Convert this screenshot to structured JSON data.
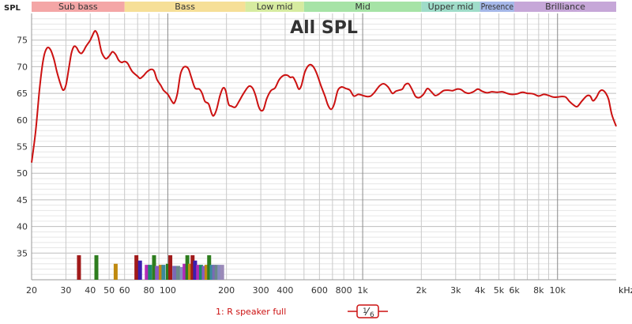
{
  "chart_data": {
    "type": "line",
    "title": "All SPL",
    "ylabel": "SPL",
    "x_unit": "kHz",
    "x_scale": "log",
    "xlim": [
      20,
      20000
    ],
    "ylim": [
      30,
      80
    ],
    "grid": true,
    "bands": [
      {
        "label": "Sub bass",
        "from": 20,
        "to": 60,
        "color": "#f4a6a6"
      },
      {
        "label": "Bass",
        "from": 60,
        "to": 250,
        "color": "#f6df97"
      },
      {
        "label": "Low mid",
        "from": 250,
        "to": 500,
        "color": "#d6eba0"
      },
      {
        "label": "Mid",
        "from": 500,
        "to": 2000,
        "color": "#a6e3a6"
      },
      {
        "label": "Upper mid",
        "from": 2000,
        "to": 4000,
        "color": "#9fdcc9"
      },
      {
        "label": "Presence",
        "from": 4000,
        "to": 6000,
        "color": "#a5b7e8"
      },
      {
        "label": "Brilliance",
        "from": 6000,
        "to": 20000,
        "color": "#c6a7d8"
      }
    ],
    "y_ticks": [
      35,
      40,
      45,
      50,
      55,
      60,
      65,
      70,
      75
    ],
    "x_ticks": [
      {
        "v": 20,
        "label": "20"
      },
      {
        "v": 30,
        "label": "30"
      },
      {
        "v": 40,
        "label": "40"
      },
      {
        "v": 50,
        "label": "50"
      },
      {
        "v": 60,
        "label": "60"
      },
      {
        "v": 80,
        "label": "80"
      },
      {
        "v": 100,
        "label": "100"
      },
      {
        "v": 200,
        "label": "200"
      },
      {
        "v": 300,
        "label": "300"
      },
      {
        "v": 400,
        "label": "400"
      },
      {
        "v": 600,
        "label": "600"
      },
      {
        "v": 800,
        "label": "800"
      },
      {
        "v": 1000,
        "label": "1k"
      },
      {
        "v": 2000,
        "label": "2k"
      },
      {
        "v": 3000,
        "label": "3k"
      },
      {
        "v": 4000,
        "label": "4k"
      },
      {
        "v": 5000,
        "label": "5k"
      },
      {
        "v": 6000,
        "label": "6k"
      },
      {
        "v": 8000,
        "label": "8k"
      },
      {
        "v": 10000,
        "label": "10k"
      }
    ],
    "series": [
      {
        "name": "1: R speaker full",
        "color": "#cc1111",
        "points": [
          [
            20,
            52
          ],
          [
            21,
            58
          ],
          [
            22,
            66
          ],
          [
            23,
            71.5
          ],
          [
            24,
            73.5
          ],
          [
            25,
            73.2
          ],
          [
            26,
            71.5
          ],
          [
            27,
            69
          ],
          [
            28,
            67
          ],
          [
            29,
            65.6
          ],
          [
            30,
            66.5
          ],
          [
            31,
            69.5
          ],
          [
            32,
            72.5
          ],
          [
            33,
            73.8
          ],
          [
            34,
            73.6
          ],
          [
            35,
            72.8
          ],
          [
            36,
            72.5
          ],
          [
            37,
            73
          ],
          [
            38,
            73.8
          ],
          [
            40,
            75
          ],
          [
            42,
            76.6
          ],
          [
            43,
            76.5
          ],
          [
            44,
            75.5
          ],
          [
            45,
            73.8
          ],
          [
            46,
            72.5
          ],
          [
            48,
            71.5
          ],
          [
            50,
            72
          ],
          [
            52,
            72.8
          ],
          [
            54,
            72.3
          ],
          [
            56,
            71.2
          ],
          [
            58,
            70.8
          ],
          [
            60,
            71
          ],
          [
            62,
            70.7
          ],
          [
            64,
            69.8
          ],
          [
            66,
            69
          ],
          [
            70,
            68.2
          ],
          [
            72,
            67.8
          ],
          [
            75,
            68.3
          ],
          [
            78,
            69
          ],
          [
            82,
            69.5
          ],
          [
            85,
            69.2
          ],
          [
            88,
            67.6
          ],
          [
            92,
            66.5
          ],
          [
            95,
            65.6
          ],
          [
            100,
            64.8
          ],
          [
            105,
            63.5
          ],
          [
            108,
            63.2
          ],
          [
            112,
            65
          ],
          [
            116,
            68.5
          ],
          [
            120,
            69.8
          ],
          [
            124,
            70
          ],
          [
            128,
            69.5
          ],
          [
            132,
            68
          ],
          [
            138,
            66
          ],
          [
            145,
            65.8
          ],
          [
            150,
            65
          ],
          [
            155,
            63.5
          ],
          [
            162,
            63
          ],
          [
            168,
            61.2
          ],
          [
            172,
            60.8
          ],
          [
            178,
            62
          ],
          [
            185,
            64.5
          ],
          [
            192,
            66
          ],
          [
            198,
            65.5
          ],
          [
            205,
            63
          ],
          [
            212,
            62.6
          ],
          [
            222,
            62.4
          ],
          [
            232,
            63.5
          ],
          [
            245,
            65
          ],
          [
            260,
            66.3
          ],
          [
            272,
            66
          ],
          [
            282,
            64.6
          ],
          [
            292,
            62.6
          ],
          [
            300,
            61.8
          ],
          [
            310,
            62
          ],
          [
            322,
            64
          ],
          [
            338,
            65.5
          ],
          [
            355,
            66
          ],
          [
            372,
            67.5
          ],
          [
            390,
            68.3
          ],
          [
            410,
            68.4
          ],
          [
            425,
            68
          ],
          [
            440,
            68
          ],
          [
            455,
            67
          ],
          [
            470,
            65.8
          ],
          [
            485,
            66.5
          ],
          [
            505,
            69
          ],
          [
            530,
            70.3
          ],
          [
            555,
            70.1
          ],
          [
            580,
            68.8
          ],
          [
            610,
            66.5
          ],
          [
            640,
            64.5
          ],
          [
            665,
            62.7
          ],
          [
            690,
            62
          ],
          [
            715,
            63
          ],
          [
            745,
            65.5
          ],
          [
            780,
            66.2
          ],
          [
            820,
            65.9
          ],
          [
            860,
            65.6
          ],
          [
            900,
            64.5
          ],
          [
            950,
            64.8
          ],
          [
            1000,
            64.6
          ],
          [
            1050,
            64.4
          ],
          [
            1100,
            64.5
          ],
          [
            1150,
            65.2
          ],
          [
            1220,
            66.4
          ],
          [
            1280,
            66.8
          ],
          [
            1350,
            66.2
          ],
          [
            1420,
            65
          ],
          [
            1480,
            65.4
          ],
          [
            1540,
            65.6
          ],
          [
            1600,
            65.8
          ],
          [
            1650,
            66.6
          ],
          [
            1720,
            66.8
          ],
          [
            1800,
            65.6
          ],
          [
            1870,
            64.4
          ],
          [
            1950,
            64.2
          ],
          [
            2050,
            64.8
          ],
          [
            2150,
            65.9
          ],
          [
            2250,
            65.3
          ],
          [
            2350,
            64.6
          ],
          [
            2450,
            64.8
          ],
          [
            2600,
            65.5
          ],
          [
            2750,
            65.6
          ],
          [
            2900,
            65.5
          ],
          [
            3050,
            65.8
          ],
          [
            3200,
            65.7
          ],
          [
            3350,
            65.2
          ],
          [
            3500,
            65
          ],
          [
            3700,
            65.3
          ],
          [
            3900,
            65.8
          ],
          [
            4100,
            65.4
          ],
          [
            4350,
            65.1
          ],
          [
            4600,
            65.3
          ],
          [
            4900,
            65.2
          ],
          [
            5200,
            65.3
          ],
          [
            5500,
            65
          ],
          [
            5800,
            64.8
          ],
          [
            6200,
            64.9
          ],
          [
            6600,
            65.2
          ],
          [
            7000,
            65
          ],
          [
            7500,
            64.9
          ],
          [
            8000,
            64.5
          ],
          [
            8500,
            64.8
          ],
          [
            9000,
            64.6
          ],
          [
            9500,
            64.3
          ],
          [
            10000,
            64.3
          ],
          [
            10500,
            64.4
          ],
          [
            11000,
            64.3
          ],
          [
            11500,
            63.5
          ],
          [
            12000,
            62.9
          ],
          [
            12600,
            62.5
          ],
          [
            13300,
            63.5
          ],
          [
            14100,
            64.5
          ],
          [
            14700,
            64.5
          ],
          [
            15200,
            63.6
          ],
          [
            15800,
            64.2
          ],
          [
            16400,
            65.3
          ],
          [
            17000,
            65.6
          ],
          [
            17700,
            65
          ],
          [
            18300,
            63.8
          ],
          [
            19000,
            61
          ],
          [
            20000,
            58.8
          ]
        ]
      }
    ],
    "bars_note": "",
    "bars": [
      {
        "f": 35,
        "y": 34.6,
        "color": "#a11a1a"
      },
      {
        "f": 43,
        "y": 34.6,
        "color": "#2e7d1e"
      },
      {
        "f": 54,
        "y": 33,
        "color": "#c08a10"
      },
      {
        "f": 69,
        "y": 34.6,
        "color": "#a11a1a"
      },
      {
        "f": 72,
        "y": 33.6,
        "color": "#3a1fb0"
      },
      {
        "f": 78,
        "y": 32.8,
        "color": "#b22ab8"
      },
      {
        "f": 81,
        "y": 32.8,
        "color": "#1b8b6a"
      },
      {
        "f": 85,
        "y": 34.6,
        "color": "#2e7d1e"
      },
      {
        "f": 88,
        "y": 32.6,
        "color": "#8a5cc2"
      },
      {
        "f": 92,
        "y": 32.8,
        "color": "#c08a10"
      },
      {
        "f": 95,
        "y": 32.8,
        "color": "#3b8a9e"
      },
      {
        "f": 100,
        "y": 33,
        "color": "#2e7d1e"
      },
      {
        "f": 103,
        "y": 34.6,
        "color": "#a11a1a"
      },
      {
        "f": 108,
        "y": 32.6,
        "color": "#7a6ab5"
      },
      {
        "f": 113,
        "y": 32.6,
        "color": "#6a8a8a"
      },
      {
        "f": 118,
        "y": 32.4,
        "color": "#8a8ac2"
      },
      {
        "f": 122,
        "y": 33,
        "color": "#b22ab8"
      },
      {
        "f": 126,
        "y": 34.6,
        "color": "#2e7d1e"
      },
      {
        "f": 130,
        "y": 33,
        "color": "#c08a10"
      },
      {
        "f": 134,
        "y": 34.6,
        "color": "#a11a1a"
      },
      {
        "f": 138,
        "y": 33.6,
        "color": "#3a1fb0"
      },
      {
        "f": 143,
        "y": 32.8,
        "color": "#b22ab8"
      },
      {
        "f": 148,
        "y": 32.8,
        "color": "#1b8b6a"
      },
      {
        "f": 153,
        "y": 32.6,
        "color": "#8a5cc2"
      },
      {
        "f": 158,
        "y": 32.8,
        "color": "#c08a10"
      },
      {
        "f": 163,
        "y": 34.6,
        "color": "#2e7d1e"
      },
      {
        "f": 168,
        "y": 32.8,
        "color": "#3b8a9e"
      },
      {
        "f": 173,
        "y": 32.8,
        "color": "#7a6ab5"
      },
      {
        "f": 178,
        "y": 32.8,
        "color": "#6a8a8a"
      },
      {
        "f": 184,
        "y": 32.8,
        "color": "#8a8ac2"
      },
      {
        "f": 190,
        "y": 32.8,
        "color": "#9a8ab8"
      }
    ]
  },
  "legend": {
    "series_label": "1: R speaker full"
  },
  "smoothing": {
    "num": "1",
    "den": "6"
  }
}
